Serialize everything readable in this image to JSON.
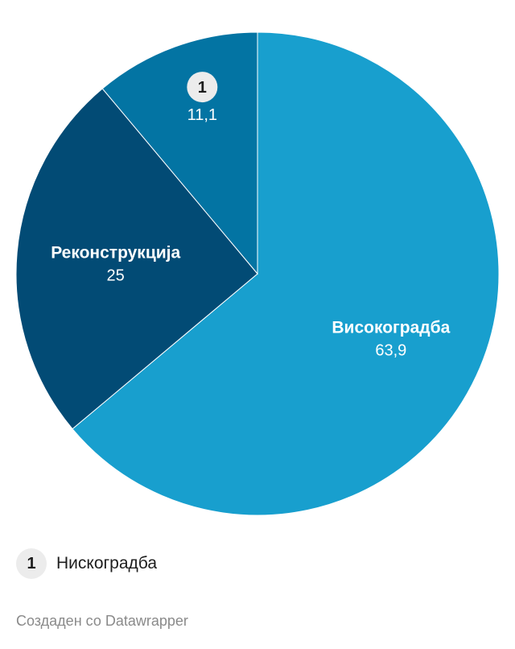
{
  "chart_data": {
    "type": "pie",
    "slices": [
      {
        "name": "Високоградба",
        "value": 63.9,
        "value_label": "63,9",
        "color": "#189fce",
        "show_name": true
      },
      {
        "name": "Реконструкција",
        "value": 25,
        "value_label": "25",
        "color": "#024b75",
        "show_name": true
      },
      {
        "name": "Нискоградба",
        "value": 11.1,
        "value_label": "11,1",
        "color": "#0374a3",
        "show_name": false,
        "marker": "1"
      }
    ],
    "legend": {
      "placement": "bottom-left",
      "entries": [
        {
          "marker": "1",
          "label": "Нискоградба"
        }
      ]
    }
  },
  "footer": {
    "credit": "Создаден со Datawrapper"
  }
}
